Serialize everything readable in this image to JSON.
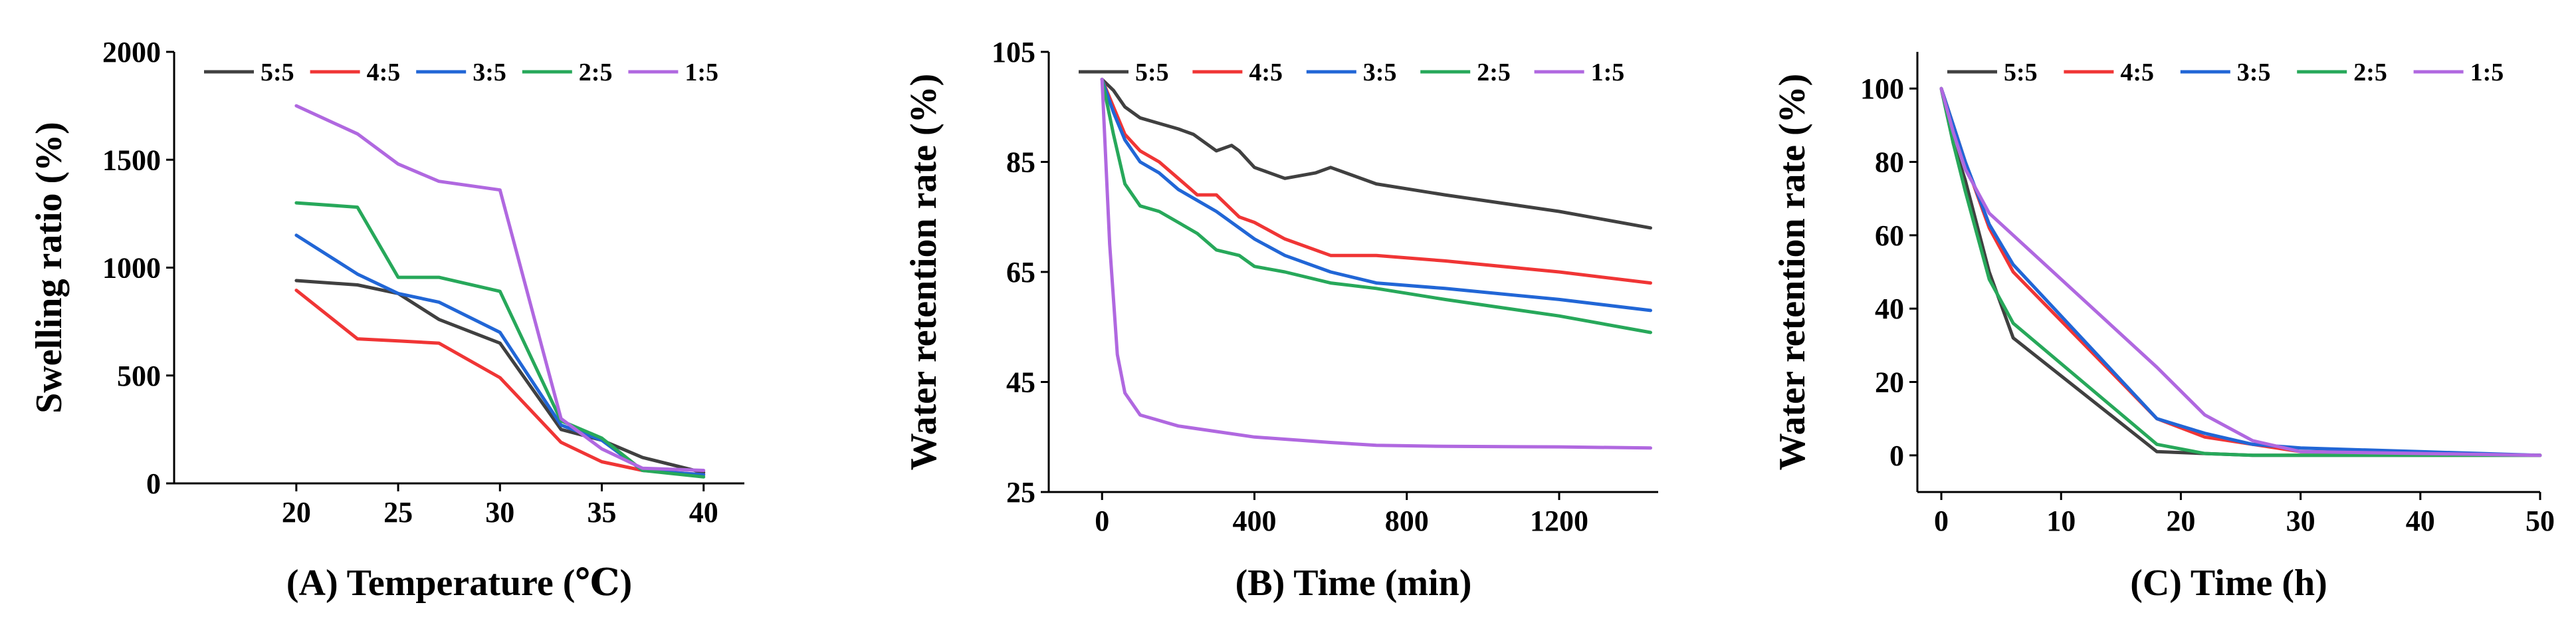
{
  "colors": {
    "5:5": "#404040",
    "4:5": "#f03535",
    "3:5": "#2166d6",
    "2:5": "#27a85a",
    "1:5": "#b068e0"
  },
  "chart_data": [
    {
      "type": "line",
      "panel": "A",
      "xlabel": "(A) Temperature (℃)",
      "ylabel": "Swelling ratio (%)",
      "xlim": [
        14,
        42
      ],
      "ylim": [
        0,
        2000
      ],
      "xticks": [
        20,
        25,
        30,
        35,
        40
      ],
      "yticks": [
        0,
        500,
        1000,
        1500,
        2000
      ],
      "legend": [
        "5:5",
        "4:5",
        "3:5",
        "2:5",
        "1:5"
      ],
      "series": [
        {
          "name": "5:5",
          "x": [
            20,
            23,
            25,
            27,
            30,
            33,
            35,
            37,
            40
          ],
          "y": [
            940,
            920,
            880,
            760,
            650,
            250,
            200,
            120,
            50
          ]
        },
        {
          "name": "4:5",
          "x": [
            20,
            23,
            25,
            27,
            30,
            33,
            35,
            37,
            40
          ],
          "y": [
            895,
            670,
            660,
            650,
            490,
            190,
            100,
            60,
            40
          ]
        },
        {
          "name": "3:5",
          "x": [
            20,
            23,
            25,
            27,
            30,
            33,
            35,
            37,
            40
          ],
          "y": [
            1150,
            970,
            880,
            840,
            700,
            270,
            200,
            60,
            40
          ]
        },
        {
          "name": "2:5",
          "x": [
            20,
            23,
            25,
            27,
            30,
            33,
            35,
            37,
            40
          ],
          "y": [
            1300,
            1280,
            955,
            955,
            890,
            290,
            210,
            60,
            30
          ]
        },
        {
          "name": "1:5",
          "x": [
            20,
            23,
            25,
            27,
            30,
            33,
            35,
            37,
            40
          ],
          "y": [
            1750,
            1620,
            1480,
            1400,
            1360,
            300,
            160,
            70,
            60
          ]
        }
      ]
    },
    {
      "type": "line",
      "panel": "B",
      "xlabel": "(B) Time (min)",
      "ylabel": "Water retention rate (%)",
      "xlim": [
        -140,
        1460
      ],
      "ylim": [
        25,
        105
      ],
      "xticks": [
        0,
        400,
        800,
        1200
      ],
      "yticks": [
        25,
        45,
        65,
        85,
        105
      ],
      "legend": [
        "5:5",
        "4:5",
        "3:5",
        "2:5",
        "1:5"
      ],
      "series": [
        {
          "name": "5:5",
          "x": [
            0,
            30,
            60,
            100,
            150,
            200,
            240,
            300,
            340,
            360,
            400,
            480,
            560,
            600,
            720,
            900,
            1200,
            1440
          ],
          "y": [
            100,
            98,
            95,
            93,
            92,
            91,
            90,
            87,
            88,
            87,
            84,
            82,
            83,
            84,
            81,
            79,
            76,
            73
          ]
        },
        {
          "name": "4:5",
          "x": [
            0,
            30,
            60,
            100,
            150,
            200,
            250,
            300,
            360,
            400,
            480,
            600,
            720,
            900,
            1200,
            1440
          ],
          "y": [
            100,
            95,
            90,
            87,
            85,
            82,
            79,
            79,
            75,
            74,
            71,
            68,
            68,
            67,
            65,
            63
          ]
        },
        {
          "name": "3:5",
          "x": [
            0,
            30,
            60,
            100,
            150,
            200,
            250,
            300,
            360,
            400,
            480,
            600,
            720,
            900,
            1200,
            1440
          ],
          "y": [
            100,
            94,
            89,
            85,
            83,
            80,
            78,
            76,
            73,
            71,
            68,
            65,
            63,
            62,
            60,
            58
          ]
        },
        {
          "name": "2:5",
          "x": [
            0,
            30,
            60,
            100,
            150,
            200,
            250,
            300,
            360,
            400,
            480,
            600,
            720,
            900,
            1200,
            1440
          ],
          "y": [
            100,
            90,
            81,
            77,
            76,
            74,
            72,
            69,
            68,
            66,
            65,
            63,
            62,
            60,
            57,
            54
          ]
        },
        {
          "name": "1:5",
          "x": [
            0,
            20,
            40,
            60,
            100,
            150,
            200,
            300,
            400,
            500,
            600,
            720,
            900,
            1200,
            1440
          ],
          "y": [
            100,
            70,
            50,
            43,
            39,
            38,
            37,
            36,
            35,
            34.5,
            34,
            33.5,
            33.3,
            33.2,
            33
          ]
        }
      ]
    },
    {
      "type": "line",
      "panel": "C",
      "xlabel": "(C) Time (h)",
      "ylabel": "Water retention rate (%)",
      "xlim": [
        -2,
        50
      ],
      "ylim": [
        -10,
        110
      ],
      "xticks": [
        0,
        10,
        20,
        30,
        40,
        50
      ],
      "yticks": [
        0,
        20,
        40,
        60,
        80,
        100
      ],
      "legend": [
        "5:5",
        "4:5",
        "3:5",
        "2:5",
        "1:5"
      ],
      "series": [
        {
          "name": "5:5",
          "x": [
            0,
            1,
            2,
            4,
            6,
            18,
            22,
            26,
            30,
            50
          ],
          "y": [
            100,
            85,
            75,
            50,
            32,
            1,
            0.5,
            0,
            0,
            0
          ]
        },
        {
          "name": "4:5",
          "x": [
            0,
            1,
            2,
            4,
            6,
            18,
            22,
            26,
            30,
            50
          ],
          "y": [
            100,
            90,
            80,
            62,
            50,
            10,
            5,
            3,
            1,
            0
          ]
        },
        {
          "name": "3:5",
          "x": [
            0,
            1,
            2,
            4,
            6,
            18,
            22,
            26,
            30,
            40,
            50
          ],
          "y": [
            100,
            90,
            80,
            63,
            52,
            10,
            6,
            3,
            2,
            1,
            0
          ]
        },
        {
          "name": "2:5",
          "x": [
            0,
            1,
            2,
            4,
            6,
            18,
            22,
            26,
            30,
            50
          ],
          "y": [
            100,
            85,
            72,
            48,
            36,
            3,
            0.5,
            0,
            0,
            0
          ]
        },
        {
          "name": "1:5",
          "x": [
            0,
            1,
            2,
            4,
            6,
            18,
            22,
            26,
            30,
            50
          ],
          "y": [
            100,
            88,
            78,
            66,
            60,
            24,
            11,
            4,
            1,
            0
          ]
        }
      ]
    }
  ]
}
